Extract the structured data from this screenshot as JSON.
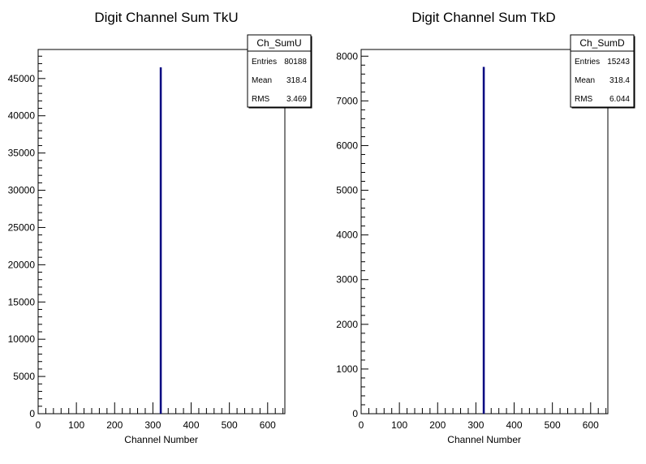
{
  "chart_data": [
    {
      "type": "bar",
      "title": "Digit Channel Sum TkU",
      "xlabel": "Channel Number",
      "ylabel": "",
      "xlim": [
        0,
        645
      ],
      "ylim": [
        0,
        48900
      ],
      "x": [
        320
      ],
      "values": [
        46500
      ],
      "color": "#000080",
      "xticks": [
        "0",
        "100",
        "200",
        "300",
        "400",
        "500",
        "600"
      ],
      "yticks": [
        "0",
        "5000",
        "10000",
        "15000",
        "20000",
        "25000",
        "30000",
        "35000",
        "40000",
        "45000"
      ],
      "stats": {
        "name": "Ch_SumU",
        "rows": [
          {
            "label": "Entries",
            "value": "80188"
          },
          {
            "label": "Mean",
            "value": "318.4"
          },
          {
            "label": "RMS",
            "value": "3.469"
          }
        ]
      }
    },
    {
      "type": "bar",
      "title": "Digit Channel Sum TkD",
      "xlabel": "Channel Number",
      "ylabel": "",
      "xlim": [
        0,
        645
      ],
      "ylim": [
        0,
        8150
      ],
      "x": [
        320
      ],
      "values": [
        7760
      ],
      "color": "#000080",
      "xticks": [
        "0",
        "100",
        "200",
        "300",
        "400",
        "500",
        "600"
      ],
      "yticks": [
        "0",
        "1000",
        "2000",
        "3000",
        "4000",
        "5000",
        "6000",
        "7000",
        "8000"
      ],
      "stats": {
        "name": "Ch_SumD",
        "rows": [
          {
            "label": "Entries",
            "value": "15243"
          },
          {
            "label": "Mean",
            "value": "318.4"
          },
          {
            "label": "RMS",
            "value": "6.044"
          }
        ]
      }
    }
  ]
}
